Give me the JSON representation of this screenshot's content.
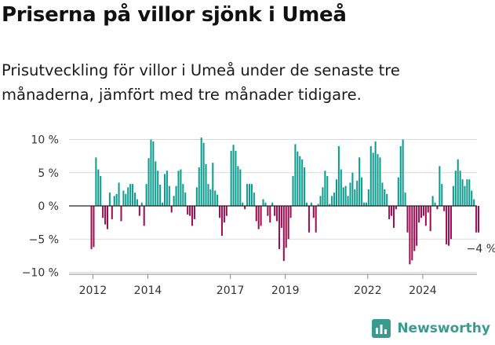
{
  "title": "Priserna på villor sjönk i Umeå",
  "subtitle": "Prisutveckling för villor i Umeå under de senaste tre månaderna, jämfört med tre månader tidigare.",
  "brand": {
    "name": "Newsworthy",
    "icon": "newsworthy-chart-logo-icon",
    "color": "#3a9a8e"
  },
  "colors": {
    "positive": "#0e9c8f",
    "negative": "#9c1052",
    "grid": "#d9d9d9",
    "zero": "#222222"
  },
  "chart_data": {
    "type": "bar",
    "x_start": "2011-12",
    "x_unit": "month",
    "ylim": [
      -10,
      10
    ],
    "yticks": [
      {
        "value": 10,
        "label": "10 %"
      },
      {
        "value": 5,
        "label": "5 %"
      },
      {
        "value": 0,
        "label": "0 %"
      },
      {
        "value": -5,
        "label": "−5 %"
      },
      {
        "value": -10,
        "label": "−10 %"
      }
    ],
    "xticks": [
      {
        "value": "2012",
        "label": "2012"
      },
      {
        "value": "2014",
        "label": "2014"
      },
      {
        "value": "2017",
        "label": "2017"
      },
      {
        "value": "2019",
        "label": "2019"
      },
      {
        "value": "2022",
        "label": "2022"
      },
      {
        "value": "2024",
        "label": "2024"
      }
    ],
    "values": [
      -6.5,
      -6.2,
      7.3,
      5.5,
      4.5,
      -1.8,
      -2.8,
      -3.5,
      2.0,
      -2.0,
      1.5,
      1.8,
      3.5,
      -2.3,
      2.3,
      1.8,
      2.8,
      3.3,
      3.3,
      2.0,
      1.0,
      -1.5,
      0.5,
      -3.0,
      3.3,
      7.2,
      10.0,
      9.7,
      6.7,
      5.3,
      3.2,
      0.5,
      4.8,
      5.3,
      3.0,
      -1.0,
      1.5,
      3.0,
      5.3,
      5.5,
      3.3,
      2.0,
      -1.3,
      -1.5,
      -3.0,
      -2.0,
      2.8,
      5.8,
      10.3,
      9.5,
      6.3,
      3.3,
      2.5,
      6.5,
      2.3,
      1.7,
      -1.8,
      -4.5,
      -2.5,
      -1.5,
      0.0,
      8.3,
      9.2,
      8.3,
      6.0,
      5.5,
      0.5,
      -0.5,
      3.3,
      3.3,
      3.3,
      2.0,
      -2.3,
      -3.5,
      -3.0,
      1.0,
      0.5,
      -1.5,
      -2.5,
      0.5,
      -1.5,
      -2.3,
      -6.5,
      -3.3,
      -8.3,
      -6.3,
      -5.0,
      -1.8,
      4.5,
      9.3,
      8.2,
      7.5,
      7.0,
      5.8,
      0.5,
      -4.0,
      0.5,
      -1.8,
      -4.0,
      0.3,
      1.5,
      2.8,
      5.3,
      4.5,
      0.3,
      1.5,
      2.0,
      4.0,
      9.0,
      5.5,
      2.8,
      3.0,
      1.5,
      3.5,
      5.0,
      2.5,
      3.8,
      7.3,
      4.3,
      0.5,
      0.5,
      2.5,
      9.0,
      8.0,
      9.7,
      7.8,
      7.3,
      3.5,
      2.5,
      1.8,
      -2.0,
      -1.5,
      -3.3,
      -0.5,
      4.3,
      9.0,
      10.0,
      2.0,
      -4.0,
      -8.8,
      -8.2,
      -6.8,
      -6.0,
      -2.5,
      -1.8,
      -1.5,
      -3.0,
      -1.0,
      -3.8,
      1.5,
      0.5,
      -0.5,
      6.0,
      3.3,
      -0.8,
      -5.8,
      -6.0,
      -5.0,
      3.0,
      5.3,
      7.0,
      5.3,
      4.0,
      3.0,
      4.0,
      4.0,
      2.3,
      1.0,
      -4.0,
      -4.0
    ],
    "annotation": {
      "label": "−4 %",
      "value": -4
    }
  }
}
